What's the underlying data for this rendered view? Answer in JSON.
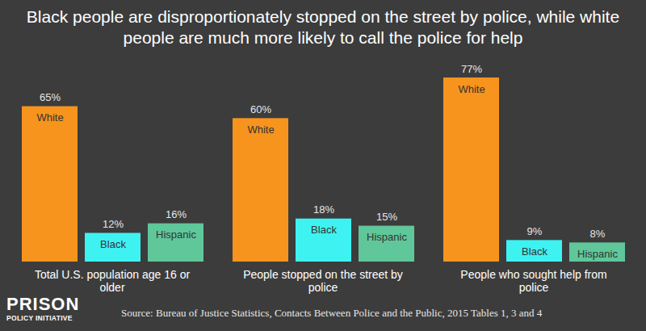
{
  "chart_data": {
    "type": "bar",
    "title": "Black people are disproportionately stopped on the street by police, while white people are much more likely to call the police for help",
    "categories": [
      "Total U.S. population age 16 or older",
      "People stopped on the street by police",
      "People who sought help from police"
    ],
    "series": [
      {
        "name": "White",
        "color": "#f7941d",
        "values": [
          65,
          60,
          77
        ],
        "value_labels": [
          "65%",
          "60%",
          "77%"
        ]
      },
      {
        "name": "Black",
        "color": "#3ff2f2",
        "values": [
          12,
          18,
          9
        ],
        "value_labels": [
          "12%",
          "18%",
          "9%"
        ]
      },
      {
        "name": "Hispanic",
        "color": "#5fc79a",
        "values": [
          16,
          15,
          8
        ],
        "value_labels": [
          "16%",
          "15%",
          "8%"
        ]
      }
    ],
    "data_labels": true,
    "tick_labels": "x",
    "source": "Source: Bureau of Justice Statistics, Contacts Between Police and the Public, 2015  Tables 1, 3 and 4",
    "logo": [
      "PRISON",
      "POLICY INITIATIVE"
    ]
  }
}
